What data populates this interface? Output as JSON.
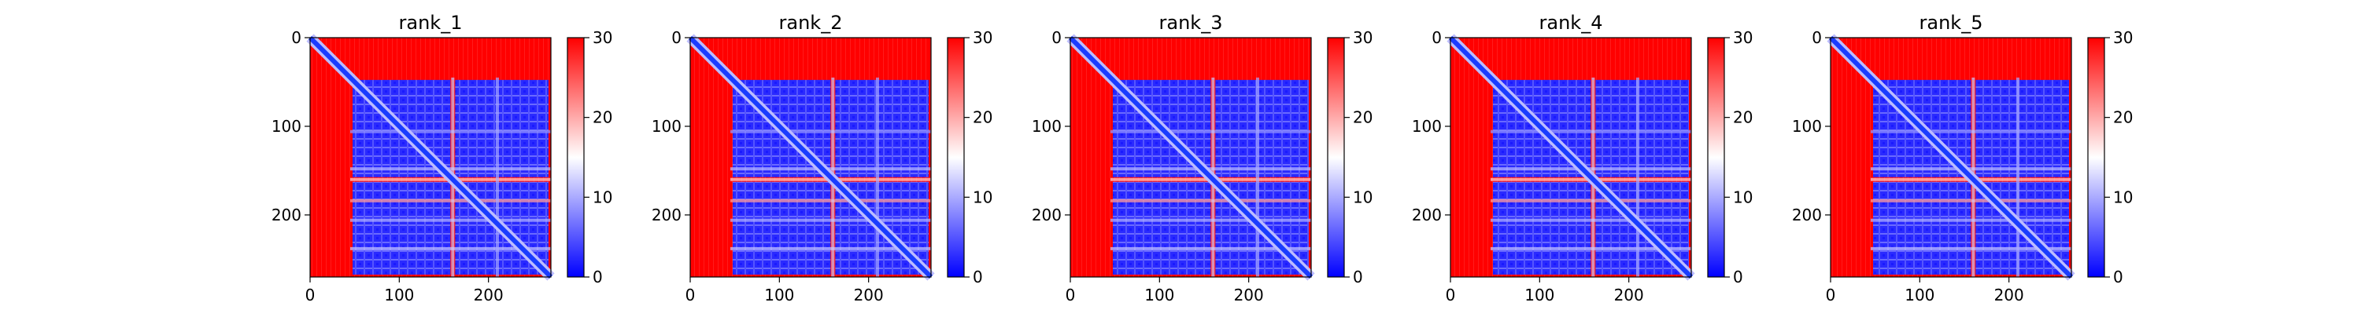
{
  "figure": {
    "panel_titles": [
      "rank_1",
      "rank_2",
      "rank_3",
      "rank_4",
      "rank_5"
    ],
    "x_ticks": [
      "0",
      "100",
      "200"
    ],
    "y_ticks": [
      "0",
      "100",
      "200"
    ],
    "colorbar_ticks": [
      "0",
      "10",
      "20",
      "30"
    ]
  },
  "chart_data": [
    {
      "type": "heatmap",
      "title": "rank_1",
      "xlabel": "",
      "ylabel": "",
      "x_range": [
        0,
        270
      ],
      "y_range": [
        270,
        0
      ],
      "x_ticks": [
        0,
        100,
        200
      ],
      "y_ticks": [
        0,
        100,
        200
      ],
      "colorbar": {
        "range": [
          0,
          30
        ],
        "ticks": [
          0,
          10,
          20,
          30
        ],
        "colormap": "bwr",
        "colors": [
          "#0000ff",
          "#ffffff",
          "#ff0000"
        ]
      },
      "description_values": {
        "diagonal": 0,
        "domain_interior": 5,
        "background": 30
      },
      "domain_blocks": [
        [
          45,
          160
        ],
        [
          160,
          270
        ]
      ]
    },
    {
      "type": "heatmap",
      "title": "rank_2",
      "xlabel": "",
      "ylabel": "",
      "x_range": [
        0,
        270
      ],
      "y_range": [
        270,
        0
      ],
      "x_ticks": [
        0,
        100,
        200
      ],
      "y_ticks": [
        0,
        100,
        200
      ],
      "colorbar": {
        "range": [
          0,
          30
        ],
        "ticks": [
          0,
          10,
          20,
          30
        ],
        "colormap": "bwr",
        "colors": [
          "#0000ff",
          "#ffffff",
          "#ff0000"
        ]
      },
      "description_values": {
        "diagonal": 0,
        "domain_interior": 5,
        "background": 30
      },
      "domain_blocks": [
        [
          45,
          160
        ],
        [
          160,
          270
        ]
      ]
    },
    {
      "type": "heatmap",
      "title": "rank_3",
      "xlabel": "",
      "ylabel": "",
      "x_range": [
        0,
        270
      ],
      "y_range": [
        270,
        0
      ],
      "x_ticks": [
        0,
        100,
        200
      ],
      "y_ticks": [
        0,
        100,
        200
      ],
      "colorbar": {
        "range": [
          0,
          30
        ],
        "ticks": [
          0,
          10,
          20,
          30
        ],
        "colormap": "bwr",
        "colors": [
          "#0000ff",
          "#ffffff",
          "#ff0000"
        ]
      },
      "description_values": {
        "diagonal": 0,
        "domain_interior": 5,
        "background": 30
      },
      "domain_blocks": [
        [
          45,
          160
        ],
        [
          160,
          270
        ]
      ]
    },
    {
      "type": "heatmap",
      "title": "rank_4",
      "xlabel": "",
      "ylabel": "",
      "x_range": [
        0,
        270
      ],
      "y_range": [
        270,
        0
      ],
      "x_ticks": [
        0,
        100,
        200
      ],
      "y_ticks": [
        0,
        100,
        200
      ],
      "colorbar": {
        "range": [
          0,
          30
        ],
        "ticks": [
          0,
          10,
          20,
          30
        ],
        "colormap": "bwr",
        "colors": [
          "#0000ff",
          "#ffffff",
          "#ff0000"
        ]
      },
      "description_values": {
        "diagonal": 0,
        "domain_interior": 5,
        "background": 30
      },
      "domain_blocks": [
        [
          45,
          160
        ],
        [
          160,
          270
        ]
      ]
    },
    {
      "type": "heatmap",
      "title": "rank_5",
      "xlabel": "",
      "ylabel": "",
      "x_range": [
        0,
        270
      ],
      "y_range": [
        270,
        0
      ],
      "x_ticks": [
        0,
        100,
        200
      ],
      "y_ticks": [
        0,
        100,
        200
      ],
      "colorbar": {
        "range": [
          0,
          30
        ],
        "ticks": [
          0,
          10,
          20,
          30
        ],
        "colormap": "bwr",
        "colors": [
          "#0000ff",
          "#ffffff",
          "#ff0000"
        ]
      },
      "description_values": {
        "diagonal": 0,
        "domain_interior": 5,
        "background": 30
      },
      "domain_blocks": [
        [
          45,
          160
        ],
        [
          160,
          270
        ]
      ]
    }
  ]
}
